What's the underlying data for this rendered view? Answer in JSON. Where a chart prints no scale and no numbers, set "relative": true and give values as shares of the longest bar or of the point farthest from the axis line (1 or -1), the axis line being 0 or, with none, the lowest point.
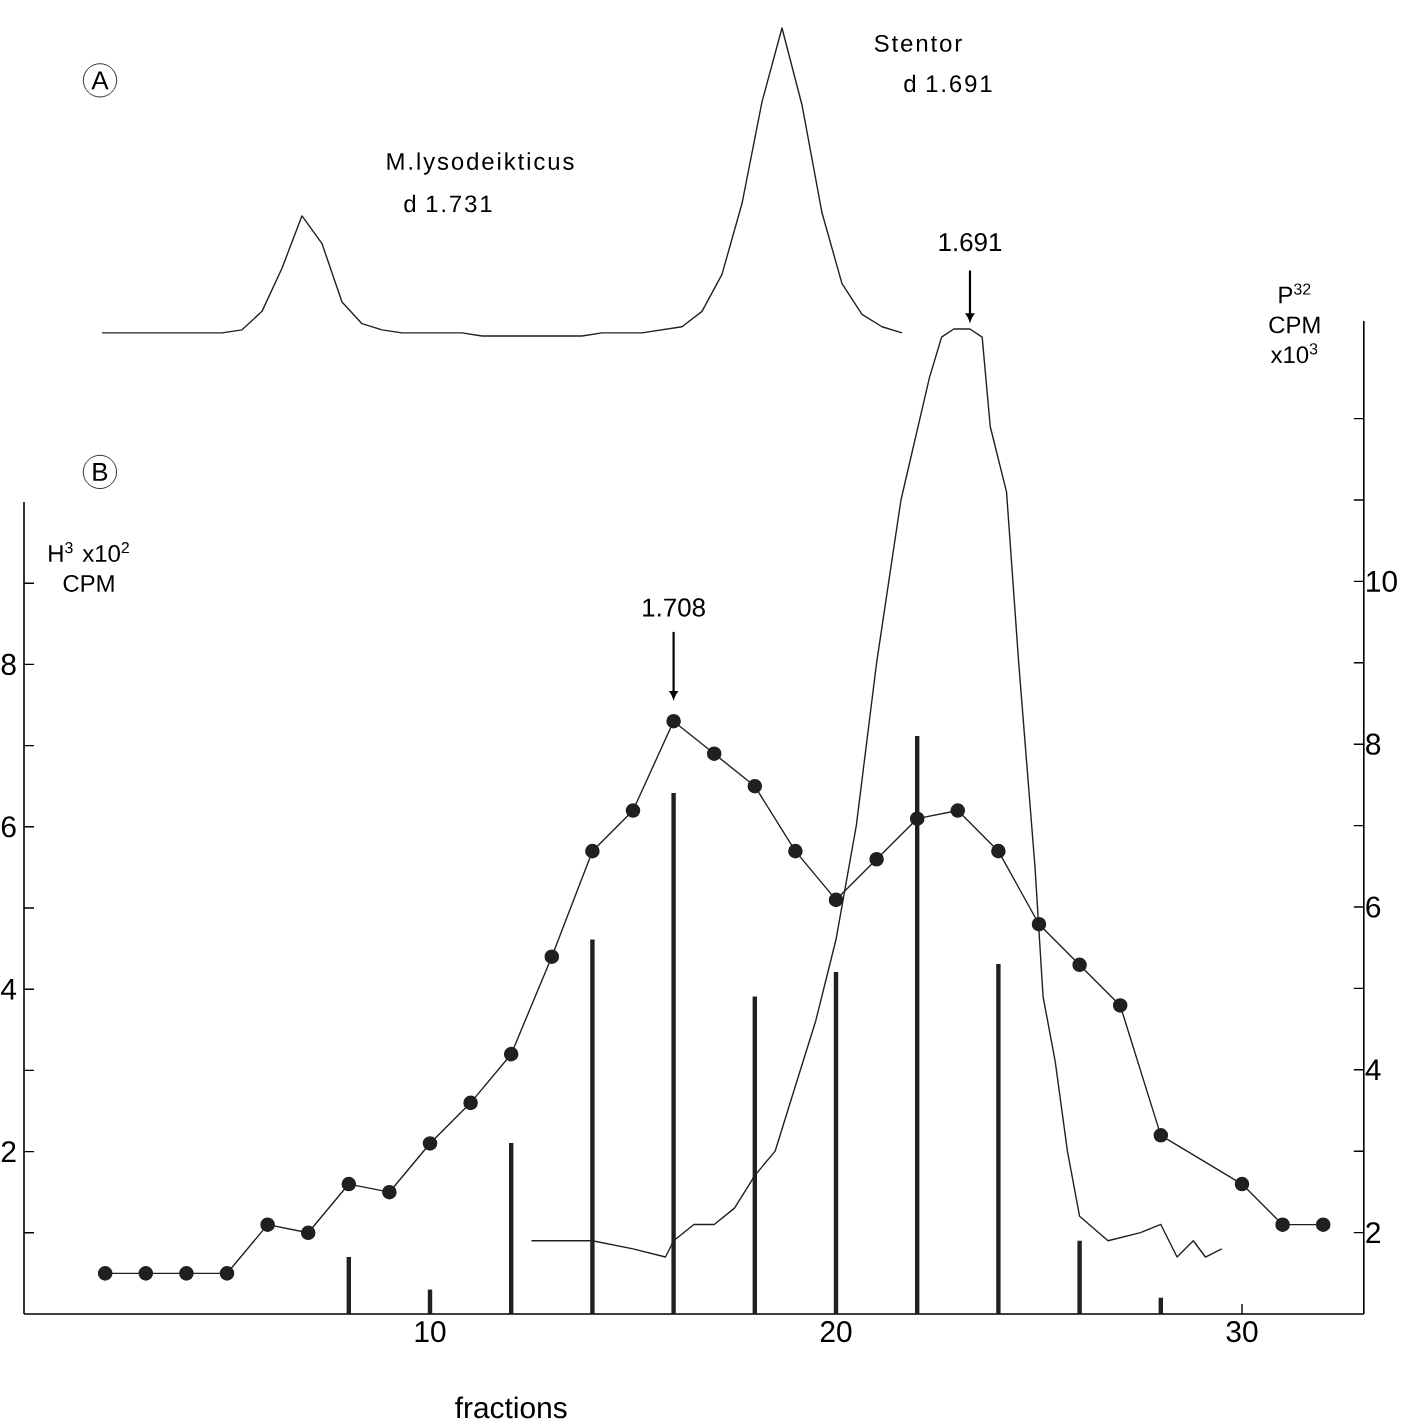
{
  "chart_data": [
    {
      "type": "line",
      "relative": true,
      "color": "#231f20",
      "categories": [
        null,
        null,
        null,
        null,
        null,
        null,
        null,
        null,
        null,
        null,
        null,
        null,
        null,
        null,
        null,
        null,
        null,
        null,
        null,
        null,
        null,
        null,
        null,
        null,
        null,
        null,
        null,
        null,
        null,
        null,
        null,
        null,
        null,
        null,
        null,
        null,
        null,
        null,
        null,
        null,
        null
      ],
      "values": [
        0.01,
        0.01,
        0.01,
        0.01,
        0.01,
        0.01,
        0.01,
        0.02,
        0.08,
        0.22,
        0.39,
        0.3,
        0.11,
        0.04,
        0.02,
        0.01,
        0.01,
        0.01,
        0.01,
        0,
        0,
        0,
        0,
        0,
        0,
        0.01,
        0.01,
        0.01,
        0.02,
        0.03,
        0.08,
        0.2,
        0.43,
        0.76,
        1,
        0.75,
        0.4,
        0.17,
        0.07,
        0.03,
        0.01
      ],
      "annotations": [
        "A",
        "M.lysodeikticus",
        "d 1.731",
        "Stentor",
        "d 1.691"
      ]
    },
    {
      "type": "line",
      "xlabel": "fractions",
      "ylabel": "H$^{3}$ x10$^{2}$ CPM",
      "y2label": "P$^{32}$ CPM x10$^{3}$",
      "xlim": [
        0,
        33
      ],
      "xticks": [
        10,
        20,
        30
      ],
      "ylim": [
        0,
        10
      ],
      "yticks": [
        {
          "value": 1,
          "label": null
        },
        2,
        {
          "value": 3,
          "label": null
        },
        4,
        {
          "value": 5,
          "label": null
        },
        6,
        {
          "value": 7,
          "label": null
        },
        8,
        {
          "value": 9,
          "label": null
        }
      ],
      "y2lim": [
        1,
        13.2
      ],
      "y2ticks": [
        2,
        {
          "value": 3,
          "label": null
        },
        4,
        {
          "value": 5,
          "label": null
        },
        6,
        {
          "value": 7,
          "label": null
        },
        8,
        {
          "value": 9,
          "label": null
        },
        10,
        {
          "value": 11,
          "label": null
        },
        {
          "value": 12,
          "label": null
        }
      ],
      "annotations": [
        "B",
        "1.708",
        "1.691"
      ],
      "series": [
        {
          "type": "line",
          "marker": "circle",
          "color": "#231f20",
          "x": [
            2,
            3,
            4,
            5,
            6,
            7,
            8,
            9,
            10,
            11,
            12,
            13,
            14,
            15,
            16,
            17,
            18,
            19,
            20,
            21,
            22,
            23,
            24,
            25,
            26,
            27,
            28,
            30,
            31,
            32
          ],
          "values": [
            0.5,
            0.5,
            0.5,
            0.5,
            1.1,
            1.0,
            1.6,
            1.5,
            2.1,
            2.6,
            3.2,
            4.4,
            5.7,
            6.2,
            7.3,
            6.9,
            6.5,
            5.7,
            5.1,
            5.6,
            6.1,
            6.2,
            5.7,
            4.8,
            4.3,
            3.8,
            2.2,
            1.6,
            1.1,
            1.1
          ]
        },
        {
          "type": "bar",
          "axis": "y2",
          "color": "#231f20",
          "x": [
            8,
            10,
            12,
            14,
            16,
            18,
            20,
            22,
            24,
            26,
            28
          ],
          "values": [
            1.7,
            1.3,
            3.1,
            5.6,
            7.4,
            4.9,
            5.2,
            8.1,
            5.3,
            1.9,
            1.2
          ]
        },
        {
          "type": "line",
          "axis": "y2",
          "marker": "none",
          "color": "#231f20",
          "x": [
            12.5,
            13.2,
            14,
            15,
            15.8,
            16,
            16.5,
            17,
            17.5,
            18,
            18.5,
            19,
            19.5,
            20,
            20.5,
            21,
            21.6,
            22.3,
            22.6,
            22.9,
            23.3,
            23.6,
            23.8,
            24.2,
            24.5,
            24.9,
            25.1,
            25.4,
            25.7,
            26,
            26.7,
            27.5,
            28,
            28.4,
            28.8,
            29.1,
            29.5
          ],
          "values": [
            1.9,
            1.9,
            1.9,
            1.8,
            1.7,
            1.9,
            2.1,
            2.1,
            2.3,
            2.7,
            3.0,
            3.8,
            4.6,
            5.6,
            7.0,
            9.0,
            11.0,
            12.5,
            13.0,
            13.1,
            13.1,
            13.0,
            11.9,
            11.1,
            9.0,
            6.5,
            4.9,
            4.1,
            3.0,
            2.2,
            1.9,
            2.0,
            2.1,
            1.7,
            1.9,
            1.7,
            1.8
          ]
        }
      ]
    }
  ]
}
